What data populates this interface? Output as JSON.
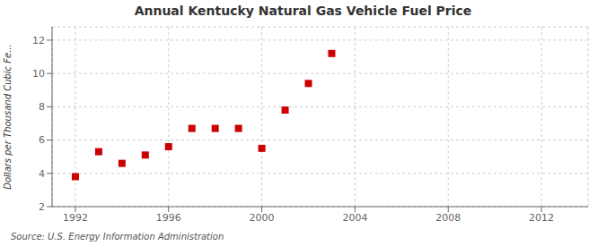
{
  "chart_data": {
    "type": "scatter",
    "title": "Annual Kentucky Natural Gas Vehicle Fuel Price",
    "ylabel": "Dollars per Thousand Cubic Fe...",
    "annotations": [
      "Source: U.S. Energy Information Administration"
    ],
    "x": [
      1992,
      1993,
      1994,
      1995,
      1996,
      1997,
      1998,
      1999,
      2000,
      2001,
      2002,
      2003
    ],
    "values": [
      3.8,
      5.3,
      4.6,
      5.1,
      5.6,
      6.7,
      6.7,
      6.7,
      5.5,
      7.8,
      9.4,
      11.2
    ],
    "color": "#cc0000",
    "marker": "square",
    "xlim": [
      1991,
      2014
    ],
    "ylim": [
      2,
      12.8
    ],
    "xticks": [
      1992,
      1996,
      2000,
      2004,
      2008,
      2012
    ],
    "yticks": [
      2,
      4,
      6,
      8,
      10,
      12
    ],
    "grid": true
  }
}
